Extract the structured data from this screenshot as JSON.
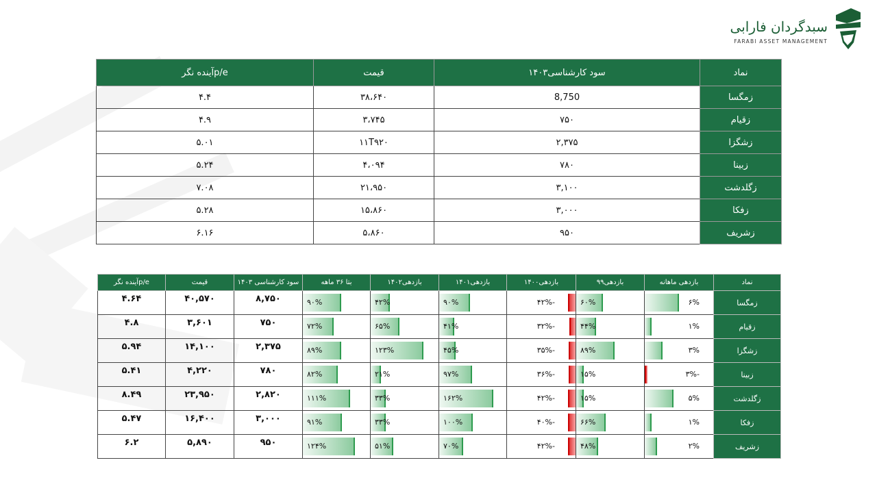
{
  "logo": {
    "title": "سبدگردان فارابی",
    "subtitle": "FARABI ASSET MANAGEMENT"
  },
  "table1": {
    "headers": [
      "نماد",
      "سود کارشناسی۱۴۰۳",
      "قیمت",
      "p/eآینده نگر"
    ],
    "rows": [
      {
        "symbol": "زمگسا",
        "profit": "8,750",
        "price": "۳۸،۶۴۰",
        "pe": "۴.۴"
      },
      {
        "symbol": "زقیام",
        "profit": "۷۵۰",
        "price": "۳،۷۴۵",
        "pe": "۴.۹"
      },
      {
        "symbol": "زشگزا",
        "profit": "۲,۳۷۵",
        "price": "۱۱T۹۲۰",
        "pe": "۵.۰۱"
      },
      {
        "symbol": "زبینا",
        "profit": "۷۸۰",
        "price": "۴،۰۹۴",
        "pe": "۵.۲۴"
      },
      {
        "symbol": "زگلدشت",
        "profit": "۳,۱۰۰",
        "price": "۲۱،۹۵۰",
        "pe": "۷.۰۸"
      },
      {
        "symbol": "زفکا",
        "profit": "۳,۰۰۰",
        "price": "۱۵،۸۶۰",
        "pe": "۵.۲۸"
      },
      {
        "symbol": "زشریف",
        "profit": "۹۵۰",
        "price": "۵،۸۶۰",
        "pe": "۶.۱۶"
      }
    ]
  },
  "table2": {
    "headers": [
      "نماد",
      "بازدهی ماهانه",
      "بازدهی۹۹",
      "بازدهی۱۴۰۰",
      "بازدهی۱۴۰۱",
      "بازدهی۱۴۰۲",
      "بتا ۳۶ ماهه",
      "سود کارشناسی ۱۴۰۳",
      "قیمت",
      "p/eآینده نگر"
    ],
    "rows": [
      {
        "symbol": "زمگسا",
        "monthly": "۶%",
        "monthly_v": 6,
        "r99": "۶۰%",
        "r99_v": 60,
        "r1400": "-۴۲%",
        "r1400_v": -42,
        "r1401": "۹۰%",
        "r1401_v": 90,
        "r1402": "۴۲%",
        "r1402_v": 42,
        "beta": "۹۰%",
        "beta_v": 90,
        "profit": "۸,۷۵۰",
        "price": "۴۰,۵۷۰",
        "pe": "۴.۶۴"
      },
      {
        "symbol": "زقیام",
        "monthly": "۱%",
        "monthly_v": 1,
        "r99": "۴۴%",
        "r99_v": 44,
        "r1400": "-۳۲%",
        "r1400_v": -32,
        "r1401": "۴۱%",
        "r1401_v": 41,
        "r1402": "۶۵%",
        "r1402_v": 65,
        "beta": "۷۲%",
        "beta_v": 72,
        "profit": "۷۵۰",
        "price": "۳,۶۰۱",
        "pe": "۴.۸"
      },
      {
        "symbol": "زشگزا",
        "monthly": "۳%",
        "monthly_v": 3,
        "r99": "۸۹%",
        "r99_v": 89,
        "r1400": "-۳۵%",
        "r1400_v": -35,
        "r1401": "۴۵%",
        "r1401_v": 45,
        "r1402": "۱۲۳%",
        "r1402_v": 123,
        "beta": "۸۹%",
        "beta_v": 89,
        "profit": "۲,۳۷۵",
        "price": "۱۴,۱۰۰",
        "pe": "۵.۹۴"
      },
      {
        "symbol": "زبینا",
        "monthly": "-۳%",
        "monthly_v": -3,
        "r99": "۱۵%",
        "r99_v": 15,
        "r1400": "-۳۶%",
        "r1400_v": -36,
        "r1401": "۹۷%",
        "r1401_v": 97,
        "r1402": "۲۱%",
        "r1402_v": 21,
        "beta": "۸۲%",
        "beta_v": 82,
        "profit": "۷۸۰",
        "price": "۴,۲۲۰",
        "pe": "۵.۴۱"
      },
      {
        "symbol": "زگلدشت",
        "monthly": "۵%",
        "monthly_v": 5,
        "r99": "۱۵%",
        "r99_v": 15,
        "r1400": "-۴۲%",
        "r1400_v": -42,
        "r1401": "۱۶۲%",
        "r1401_v": 162,
        "r1402": "۳۳%",
        "r1402_v": 33,
        "beta": "۱۱۱%",
        "beta_v": 111,
        "profit": "۲,۸۲۰",
        "price": "۲۳,۹۵۰",
        "pe": "۸.۴۹"
      },
      {
        "symbol": "زفکا",
        "monthly": "۱%",
        "monthly_v": 1,
        "r99": "۶۶%",
        "r99_v": 66,
        "r1400": "-۴۰%",
        "r1400_v": -40,
        "r1401": "۱۰۰%",
        "r1401_v": 100,
        "r1402": "۳۳%",
        "r1402_v": 33,
        "beta": "۹۱%",
        "beta_v": 91,
        "profit": "۳,۰۰۰",
        "price": "۱۶,۴۰۰",
        "pe": "۵.۴۷"
      },
      {
        "symbol": "زشریف",
        "monthly": "۲%",
        "monthly_v": 2,
        "r99": "۴۸%",
        "r99_v": 48,
        "r1400": "-۴۲%",
        "r1400_v": -42,
        "r1401": "۷۰%",
        "r1401_v": 70,
        "r1402": "۵۱%",
        "r1402_v": 51,
        "beta": "۱۲۴%",
        "beta_v": 124,
        "profit": "۹۵۰",
        "price": "۵,۸۹۰",
        "pe": "۶.۲"
      }
    ]
  },
  "colors": {
    "header_green": "#1e7145",
    "bar_green": "#2e9b4f",
    "bar_red": "#e23a3a"
  }
}
